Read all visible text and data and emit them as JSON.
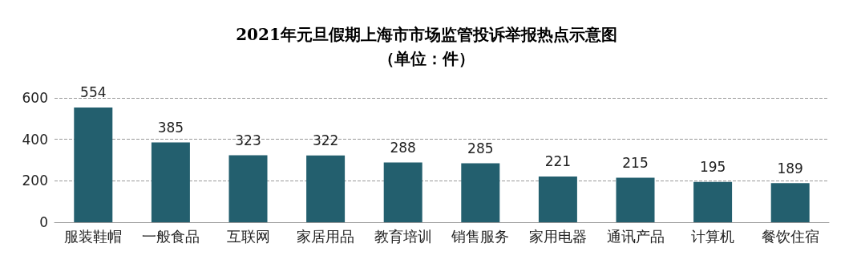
{
  "chart_data": {
    "type": "bar",
    "title": "2021年元旦假期上海市市场监管投诉举报热点示意图",
    "subtitle": "（单位：件）",
    "categories": [
      "服装鞋帽",
      "一般食品",
      "互联网",
      "家居用品",
      "教育培训",
      "销售服务",
      "家用电器",
      "通讯产品",
      "计算机",
      "餐饮住宿"
    ],
    "values": [
      554,
      385,
      323,
      322,
      288,
      285,
      221,
      215,
      195,
      189
    ],
    "color": "#235f6e",
    "ylim": [
      0,
      600
    ],
    "yticks": [
      0,
      200,
      400,
      600
    ],
    "grid": "y",
    "data_labels": true
  }
}
